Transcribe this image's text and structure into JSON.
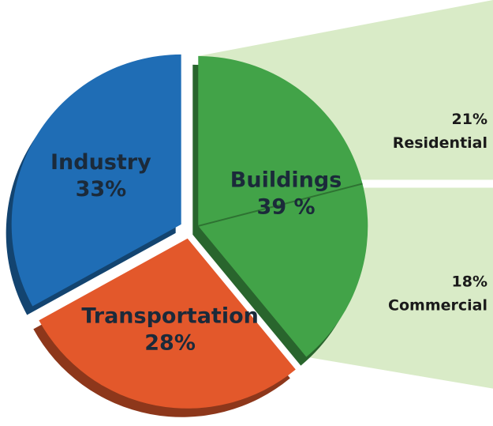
{
  "chart_data": {
    "type": "pie",
    "categories": [
      "Buildings",
      "Transportation",
      "Industry"
    ],
    "values": [
      39,
      28,
      33
    ],
    "value_labels": [
      "39 %",
      "28%",
      "33%"
    ],
    "colors": [
      "#42a348",
      "#e3582b",
      "#1f6db5"
    ],
    "breakdown": {
      "categories": [
        "Residential",
        "Commercial"
      ],
      "values": [
        21,
        18
      ],
      "value_labels": [
        "21%",
        "18%"
      ],
      "color": "#d9ebc7"
    }
  }
}
